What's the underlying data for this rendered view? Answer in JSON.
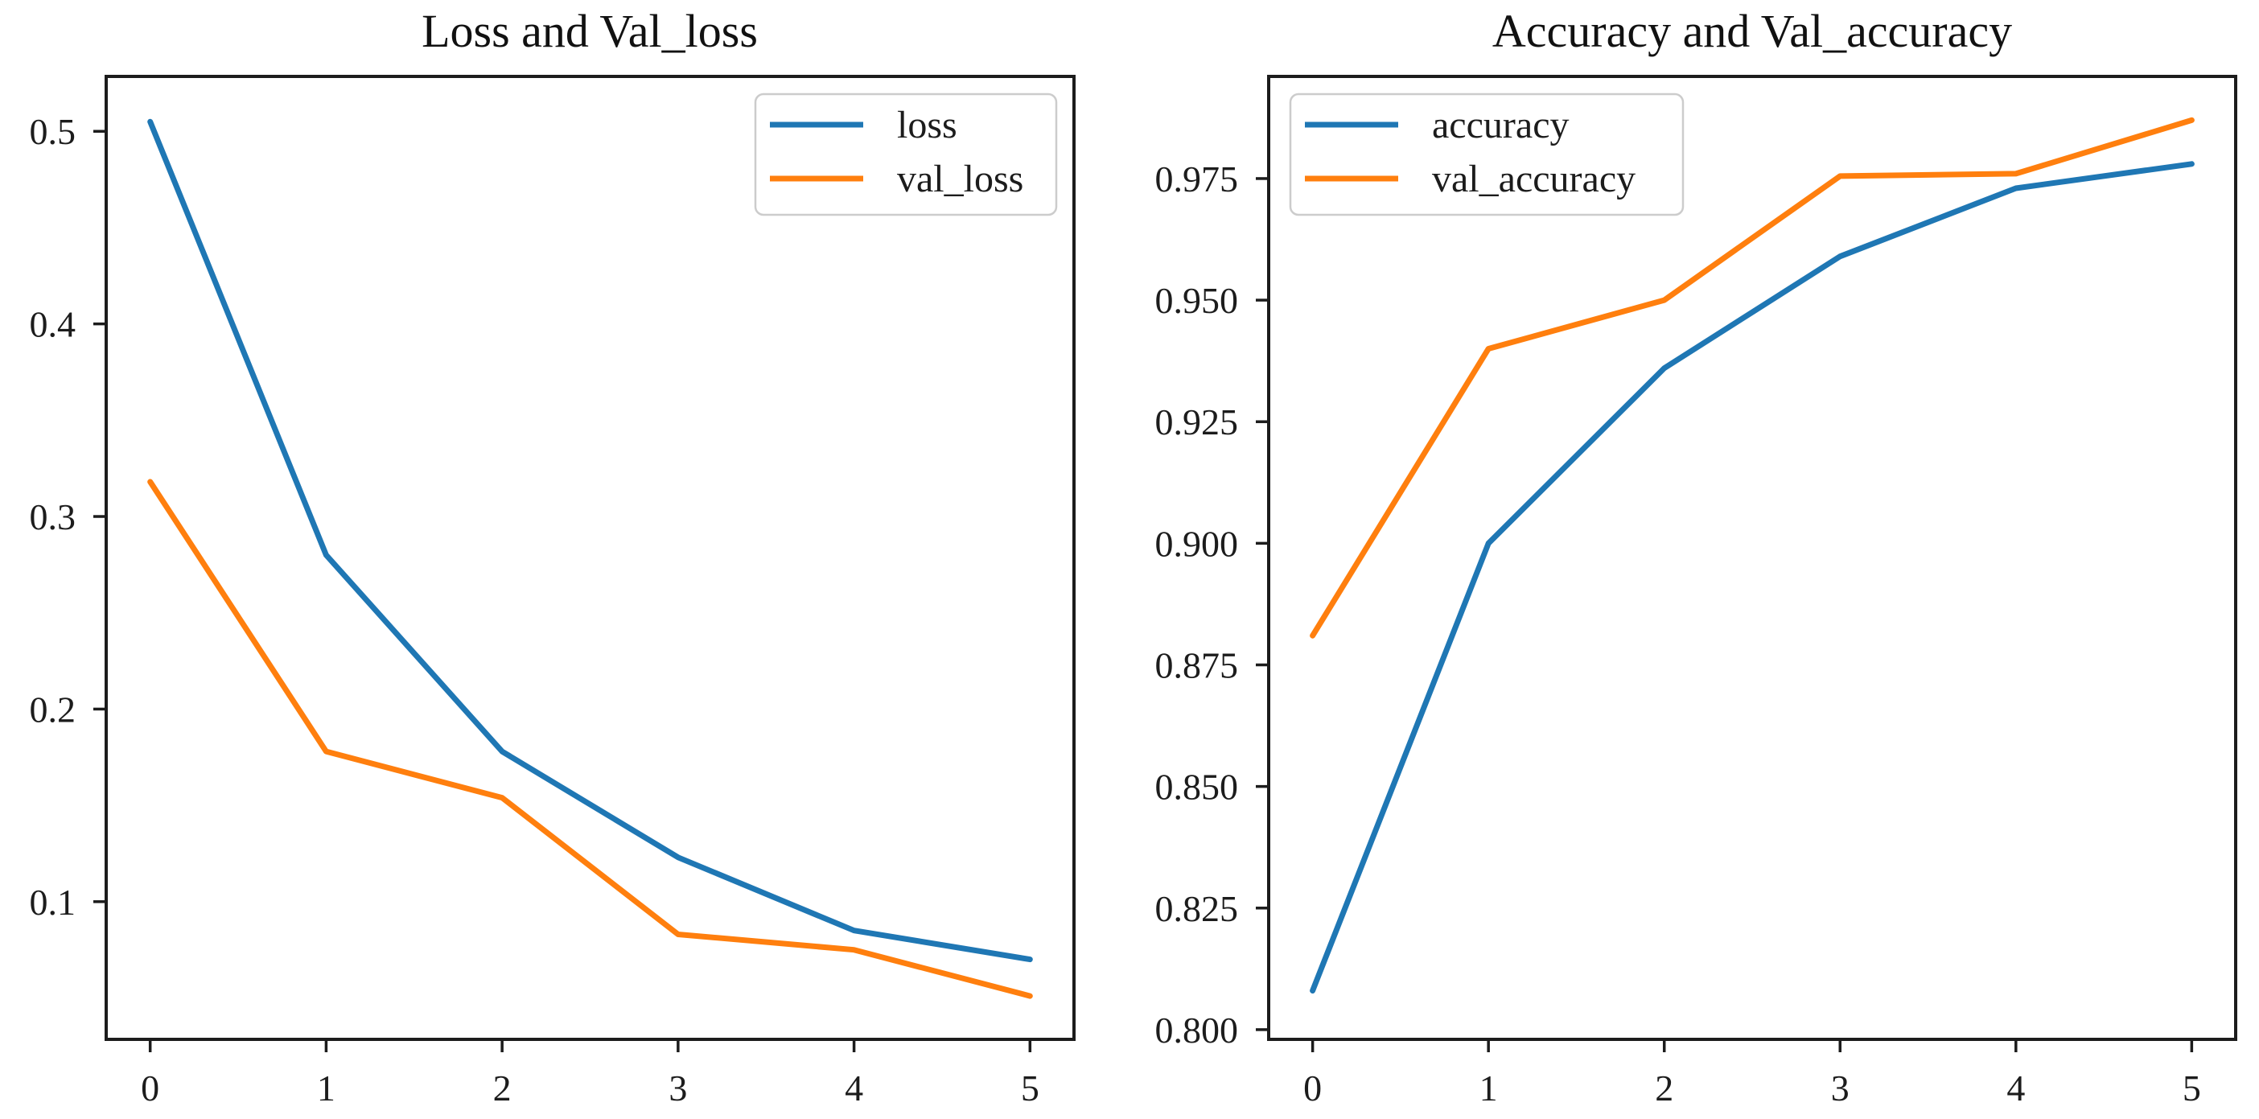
{
  "figure": {
    "background": "#ffffff",
    "text_color": "#1c1c1c"
  },
  "chart_data": [
    {
      "type": "line",
      "title": "Loss and Val_loss",
      "x": [
        0,
        1,
        2,
        3,
        4,
        5
      ],
      "xticks": [
        "0",
        "1",
        "2",
        "3",
        "4",
        "5"
      ],
      "yticks": [
        0.1,
        0.2,
        0.3,
        0.4,
        0.5
      ],
      "ytick_labels": [
        "0.1",
        "0.2",
        "0.3",
        "0.4",
        "0.5"
      ],
      "xlim": [
        -0.25,
        5.25
      ],
      "ylim": [
        0.0285,
        0.5285
      ],
      "grid": false,
      "legend_position": "upper-right",
      "series": [
        {
          "name": "loss",
          "color": "#1f77b4",
          "values": [
            0.505,
            0.28,
            0.178,
            0.123,
            0.085,
            0.07
          ]
        },
        {
          "name": "val_loss",
          "color": "#ff7f0e",
          "values": [
            0.318,
            0.178,
            0.154,
            0.083,
            0.075,
            0.051
          ]
        }
      ]
    },
    {
      "type": "line",
      "title": "Accuracy and Val_accuracy",
      "x": [
        0,
        1,
        2,
        3,
        4,
        5
      ],
      "xticks": [
        "0",
        "1",
        "2",
        "3",
        "4",
        "5"
      ],
      "yticks": [
        0.8,
        0.825,
        0.85,
        0.875,
        0.9,
        0.925,
        0.95,
        0.975
      ],
      "ytick_labels": [
        "0.800",
        "0.825",
        "0.850",
        "0.875",
        "0.900",
        "0.925",
        "0.950",
        "0.975"
      ],
      "xlim": [
        -0.25,
        5.25
      ],
      "ylim": [
        0.798,
        0.996
      ],
      "grid": false,
      "legend_position": "upper-left",
      "series": [
        {
          "name": "accuracy",
          "color": "#1f77b4",
          "values": [
            0.808,
            0.9,
            0.936,
            0.959,
            0.973,
            0.978
          ]
        },
        {
          "name": "val_accuracy",
          "color": "#ff7f0e",
          "values": [
            0.881,
            0.94,
            0.95,
            0.9755,
            0.976,
            0.987
          ]
        }
      ]
    }
  ]
}
